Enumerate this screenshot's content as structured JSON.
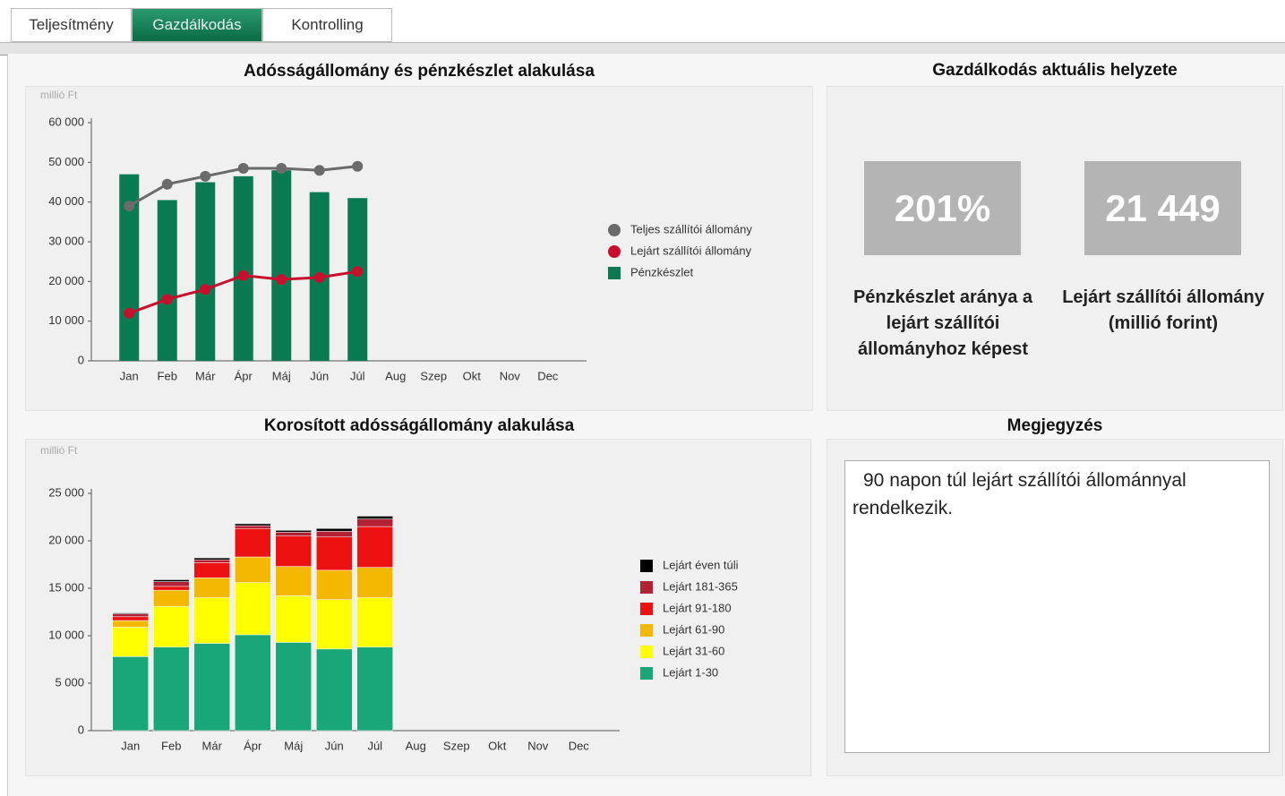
{
  "tabs": [
    "Teljesítmény",
    "Gazdálkodás",
    "Kontrolling"
  ],
  "active_tab": 1,
  "status": {
    "title": "Gazdálkodás aktuális helyzete",
    "kpis": [
      {
        "value": "201%",
        "caption": "Pénzkészlet aránya a lejárt szállítói állományhoz képest"
      },
      {
        "value": "21 449",
        "caption": "Lejárt szállítói állomány (millió forint)"
      }
    ]
  },
  "note": {
    "title": "Megjegyzés",
    "text": "90 napon túl lejárt szállítói állománnyal rendelkezik."
  },
  "chart_data": [
    {
      "type": "combo",
      "title": "Adósságállomány és pénzkészlet alakulása",
      "y_label": "millió Ft",
      "categories": [
        "Jan",
        "Feb",
        "Már",
        "Ápr",
        "Máj",
        "Jún",
        "Júl",
        "Aug",
        "Szep",
        "Okt",
        "Nov",
        "Dec"
      ],
      "ylim": [
        0,
        60000
      ],
      "yticks": [
        0,
        {
          "value": 10000,
          "label": "10 000"
        },
        {
          "value": 20000,
          "label": "20 000"
        },
        {
          "value": 30000,
          "label": "30 000"
        },
        {
          "value": 40000,
          "label": "40 000"
        },
        {
          "value": 50000,
          "label": "50 000"
        },
        {
          "value": 60000,
          "label": "60 000"
        }
      ],
      "series": [
        {
          "name": "Teljes szállítói állomány",
          "type": "line",
          "color": "#6b6b6b",
          "values": [
            39000,
            44500,
            46500,
            48500,
            48500,
            48000,
            49000,
            null,
            null,
            null,
            null,
            null
          ]
        },
        {
          "name": "Lejárt szállítói állomány",
          "type": "line",
          "color": "#c8102e",
          "values": [
            12000,
            15500,
            18000,
            21500,
            20500,
            21000,
            22500,
            null,
            null,
            null,
            null,
            null
          ]
        },
        {
          "name": "Pénzkészlet",
          "type": "bar",
          "color": "#0a7a52",
          "values": [
            47000,
            40500,
            45000,
            46500,
            48000,
            42500,
            41000,
            null,
            null,
            null,
            null,
            null
          ]
        }
      ]
    },
    {
      "type": "stacked",
      "title": "Korosított adósságállomány alakulása",
      "y_label": "millió Ft",
      "categories": [
        "Jan",
        "Feb",
        "Már",
        "Ápr",
        "Máj",
        "Jún",
        "Júl",
        "Aug",
        "Szep",
        "Okt",
        "Nov",
        "Dec"
      ],
      "ylim": [
        0,
        25000
      ],
      "yticks": [
        0,
        {
          "value": 5000,
          "label": "5 000"
        },
        {
          "value": 10000,
          "label": "10 000"
        },
        {
          "value": 15000,
          "label": "15 000"
        },
        {
          "value": 20000,
          "label": "20 000"
        },
        {
          "value": 25000,
          "label": "25 000"
        }
      ],
      "series": [
        {
          "name": "Lejárt 1-30",
          "color": "#19a77a",
          "values": [
            7800,
            8800,
            9200,
            10100,
            9300,
            8600,
            8800,
            null,
            null,
            null,
            null,
            null
          ]
        },
        {
          "name": "Lejárt 31-60",
          "color": "#ffff00",
          "values": [
            3100,
            4300,
            4800,
            5500,
            4900,
            5200,
            5200,
            null,
            null,
            null,
            null,
            null
          ]
        },
        {
          "name": "Lejárt 61-90",
          "color": "#f5b800",
          "values": [
            700,
            1700,
            2100,
            2700,
            3100,
            3100,
            3200,
            null,
            null,
            null,
            null,
            null
          ]
        },
        {
          "name": "Lejárt 91-180",
          "color": "#ee1111",
          "values": [
            400,
            400,
            1600,
            3000,
            3200,
            3500,
            4300,
            null,
            null,
            null,
            null,
            null
          ]
        },
        {
          "name": "Lejárt 181-365",
          "color": "#b22234",
          "values": [
            300,
            500,
            300,
            300,
            400,
            600,
            800,
            null,
            null,
            null,
            null,
            null
          ]
        },
        {
          "name": "Lejárt éven túli",
          "color": "#000000",
          "values": [
            100,
            200,
            200,
            200,
            200,
            300,
            300,
            null,
            null,
            null,
            null,
            null
          ]
        }
      ]
    }
  ]
}
